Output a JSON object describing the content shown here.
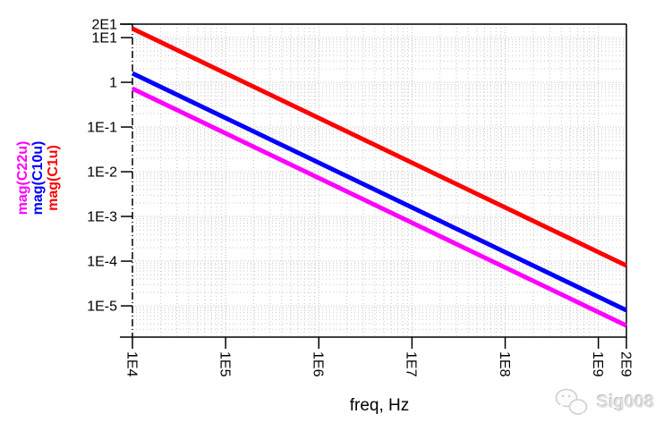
{
  "watermark": {
    "text": "Sig008",
    "logo_icon": "wechat-logo-icon",
    "color": "#d9d9d9"
  },
  "chart_data": {
    "type": "line",
    "title": "",
    "xlabel": "freq, Hz",
    "ylabel": "",
    "x_scale": "log",
    "y_scale": "log",
    "xlim": [
      10000,
      2000000000
    ],
    "ylim": [
      2e-06,
      20
    ],
    "grid": "dotted log minor grid on",
    "legend_position": "left, rotated vertical",
    "x_ticks": [
      {
        "label": "1E4",
        "value": 10000
      },
      {
        "label": "1E5",
        "value": 100000
      },
      {
        "label": "1E6",
        "value": 1000000
      },
      {
        "label": "1E7",
        "value": 10000000
      },
      {
        "label": "1E8",
        "value": 100000000
      },
      {
        "label": "1E9",
        "value": 1000000000
      },
      {
        "label": "2E9",
        "value": 2000000000
      }
    ],
    "y_ticks": [
      {
        "label": "2E1",
        "value": 20
      },
      {
        "label": "1E1",
        "value": 10
      },
      {
        "label": "1",
        "value": 1
      },
      {
        "label": "1E-1",
        "value": 0.1
      },
      {
        "label": "1E-2",
        "value": 0.01
      },
      {
        "label": "1E-3",
        "value": 0.001
      },
      {
        "label": "1E-4",
        "value": 0.0001
      },
      {
        "label": "1E-5",
        "value": 1e-05
      }
    ],
    "x": [
      10000,
      100000,
      1000000,
      10000000,
      100000000,
      1000000000,
      2000000000
    ],
    "series": [
      {
        "name": "mag(C22u)",
        "color": "#FF00FF",
        "values": [
          0.723,
          0.0723,
          0.00723,
          0.000723,
          7.23e-05,
          7.23e-06,
          3.62e-06
        ]
      },
      {
        "name": "mag(C10u)",
        "color": "#0000FF",
        "values": [
          1.59,
          0.159,
          0.0159,
          0.00159,
          0.000159,
          1.59e-05,
          7.96e-06
        ]
      },
      {
        "name": "mag(C1u)",
        "color": "#FF0000",
        "values": [
          15.9,
          1.59,
          0.159,
          0.0159,
          0.00159,
          0.000159,
          7.96e-05
        ]
      }
    ]
  }
}
